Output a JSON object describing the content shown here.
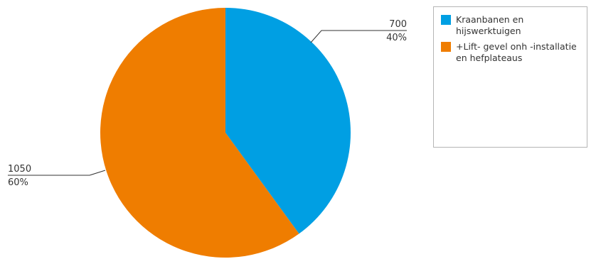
{
  "chart_data": {
    "type": "pie",
    "title": "",
    "slices": [
      {
        "label": "Kraanbanen en hijswerktuigen",
        "value": 700,
        "value_text": "700",
        "percent_text": "40%",
        "color": "#009fe3"
      },
      {
        "label": "+Lift- gevel onh -installatie en hefplateaus",
        "value": 1050,
        "value_text": "1050",
        "percent_text": "60%",
        "color": "#ef7d00"
      }
    ],
    "start_direction": "top",
    "direction": "clockwise",
    "legend_position": "right"
  }
}
